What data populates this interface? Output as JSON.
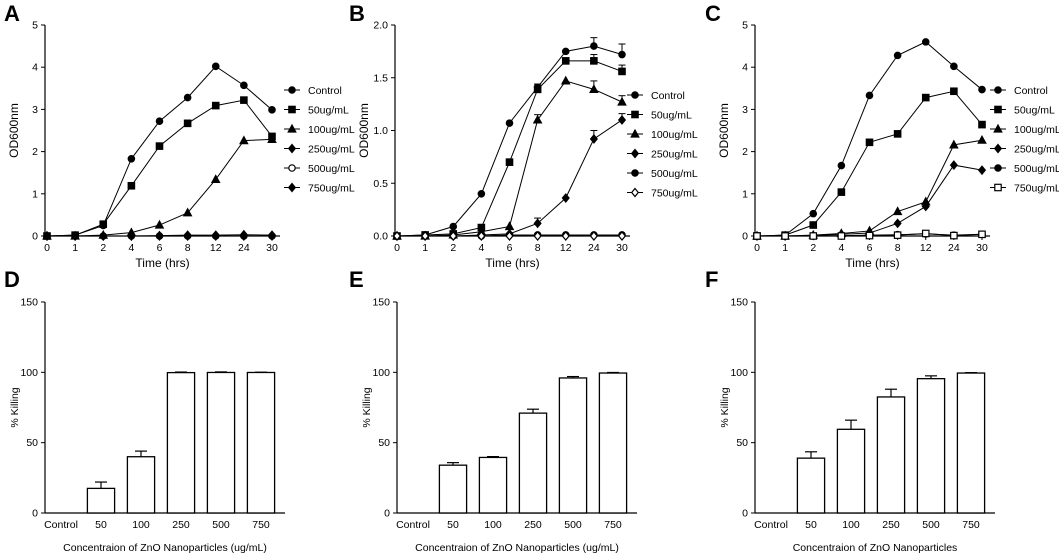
{
  "chart_data": [
    {
      "panel": "A",
      "type": "line",
      "categories": [
        "0",
        "1",
        "2",
        "4",
        "6",
        "8",
        "12",
        "24",
        "30"
      ],
      "xlabel": "Time (hrs)",
      "ylabel": "OD600nm",
      "ylim": [
        0,
        5
      ],
      "yticks": [
        "0",
        "1",
        "2",
        "3",
        "4",
        "5"
      ],
      "legend_position": "right",
      "series": [
        {
          "name": "Control",
          "marker": "circle-filled",
          "values": [
            0,
            0.02,
            0.25,
            1.83,
            2.72,
            3.28,
            4.02,
            3.57,
            2.99
          ]
        },
        {
          "name": "50ug/mL",
          "marker": "square-filled",
          "values": [
            0,
            0.02,
            0.28,
            1.19,
            2.13,
            2.67,
            3.09,
            3.22,
            2.36
          ]
        },
        {
          "name": "100ug/mL",
          "marker": "triangle-filled",
          "values": [
            0,
            0,
            0.02,
            0.08,
            0.26,
            0.55,
            1.34,
            2.26,
            2.29
          ]
        },
        {
          "name": "250ug/mL",
          "marker": "diamond-filled",
          "values": [
            0,
            0,
            0,
            0,
            0.01,
            0.02,
            0.02,
            0.03,
            0.02
          ]
        },
        {
          "name": "500ug/mL",
          "marker": "circle-open",
          "values": [
            0,
            0,
            0,
            0,
            0,
            0,
            0,
            0,
            0
          ]
        },
        {
          "name": "750ug/mL",
          "marker": "diamond-filled",
          "values": [
            0,
            0,
            0,
            0,
            0,
            0,
            0,
            0,
            0
          ]
        }
      ]
    },
    {
      "panel": "B",
      "type": "line",
      "categories": [
        "0",
        "1",
        "2",
        "4",
        "6",
        "8",
        "12",
        "24",
        "30"
      ],
      "xlabel": "Time (hrs)",
      "ylabel": "OD600nm",
      "ylim": [
        0,
        2
      ],
      "yticks": [
        "0.0",
        "0.5",
        "1.0",
        "1.5",
        "2.0"
      ],
      "legend_position": "right",
      "series": [
        {
          "name": "Control",
          "marker": "circle-filled",
          "values": [
            0,
            0.01,
            0.09,
            0.4,
            1.07,
            1.41,
            1.75,
            1.8,
            1.72
          ],
          "errors": [
            0,
            0,
            0,
            0,
            0,
            0.03,
            0,
            0.08,
            0.1
          ]
        },
        {
          "name": "50ug/mL",
          "marker": "square-filled",
          "values": [
            0,
            0.01,
            0.02,
            0.08,
            0.7,
            1.39,
            1.66,
            1.66,
            1.56
          ],
          "errors": [
            0,
            0,
            0,
            0,
            0,
            0.05,
            0,
            0.06,
            0.06
          ]
        },
        {
          "name": "100ug/mL",
          "marker": "triangle-filled",
          "values": [
            0,
            0,
            0.01,
            0.04,
            0.09,
            1.1,
            1.47,
            1.39,
            1.27
          ],
          "errors": [
            0,
            0,
            0,
            0,
            0,
            0.05,
            0,
            0.08,
            0.06
          ]
        },
        {
          "name": "250ug/mL",
          "marker": "diamond-filled",
          "values": [
            0,
            0,
            0,
            0.01,
            0.02,
            0.12,
            0.36,
            0.92,
            1.1
          ],
          "errors": [
            0,
            0,
            0,
            0,
            0,
            0.05,
            0,
            0.08,
            0.06
          ]
        },
        {
          "name": "500ug/mL",
          "marker": "circle-filled",
          "values": [
            0,
            0,
            0,
            0,
            0.01,
            0.01,
            0.01,
            0.01,
            0.01
          ]
        },
        {
          "name": "750ug/mL",
          "marker": "diamond-open",
          "values": [
            0,
            0,
            0,
            0,
            0,
            0,
            0,
            0,
            0
          ]
        }
      ]
    },
    {
      "panel": "C",
      "type": "line",
      "categories": [
        "0",
        "1",
        "2",
        "4",
        "6",
        "8",
        "12",
        "24",
        "30"
      ],
      "xlabel": "Time (hrs)",
      "ylabel": "OD600nm",
      "ylim": [
        0,
        5
      ],
      "yticks": [
        "0",
        "1",
        "2",
        "3",
        "4",
        "5"
      ],
      "legend_position": "right",
      "series": [
        {
          "name": "Control",
          "marker": "circle-filled",
          "values": [
            0,
            0.02,
            0.53,
            1.67,
            3.33,
            4.28,
            4.6,
            4.02,
            3.47
          ]
        },
        {
          "name": "50ug/mL",
          "marker": "square-filled",
          "values": [
            0,
            0.02,
            0.26,
            1.04,
            2.22,
            2.42,
            3.28,
            3.43,
            2.64
          ]
        },
        {
          "name": "100ug/mL",
          "marker": "triangle-filled",
          "values": [
            0,
            0,
            0.02,
            0.06,
            0.12,
            0.58,
            0.81,
            2.16,
            2.27
          ]
        },
        {
          "name": "250ug/mL",
          "marker": "diamond-filled",
          "values": [
            0,
            0,
            0.01,
            0.04,
            0.07,
            0.3,
            0.7,
            1.68,
            1.56
          ]
        },
        {
          "name": "500ug/mL",
          "marker": "circle-filled",
          "values": [
            0,
            0,
            0,
            0.01,
            0.02,
            0.03,
            0.05,
            0.02,
            0.04
          ]
        },
        {
          "name": "750ug/mL",
          "marker": "square-open",
          "values": [
            0,
            0,
            0,
            0,
            0.01,
            0.02,
            0.06,
            0.01,
            0.04
          ]
        }
      ]
    },
    {
      "panel": "D",
      "type": "bar",
      "categories": [
        "Control",
        "50",
        "100",
        "250",
        "500",
        "750"
      ],
      "values": [
        0,
        17.5,
        40,
        99.8,
        99.9,
        99.9
      ],
      "errors": [
        0,
        4.5,
        4,
        0.4,
        0.4,
        0.2
      ],
      "xlabel": "Concentraion of ZnO Nanoparticles (ug/mL)",
      "ylabel": "% Killing",
      "ylim": [
        0,
        150
      ],
      "yticks": [
        "0",
        "50",
        "100",
        "150"
      ]
    },
    {
      "panel": "E",
      "type": "bar",
      "categories": [
        "Control",
        "50",
        "100",
        "250",
        "500",
        "750"
      ],
      "values": [
        0,
        34,
        39.5,
        71,
        96,
        99.5
      ],
      "errors": [
        0,
        1.8,
        0.6,
        2.8,
        1,
        0.4
      ],
      "xlabel": "Concentraion of ZnO Nanoparticles (ug/mL)",
      "ylabel": "% Killing",
      "ylim": [
        0,
        150
      ],
      "yticks": [
        "0",
        "50",
        "100",
        "150"
      ]
    },
    {
      "panel": "F",
      "type": "bar",
      "categories": [
        "Control",
        "50",
        "100",
        "250",
        "500",
        "750"
      ],
      "values": [
        0,
        39,
        59.5,
        82.5,
        95.5,
        99.5
      ],
      "errors": [
        0,
        4.5,
        6.5,
        5.5,
        2,
        0.3
      ],
      "xlabel": "Concentraion of ZnO Nanoparticles",
      "ylabel": "% Killing",
      "ylim": [
        0,
        150
      ],
      "yticks": [
        "0",
        "50",
        "100",
        "150"
      ]
    }
  ]
}
